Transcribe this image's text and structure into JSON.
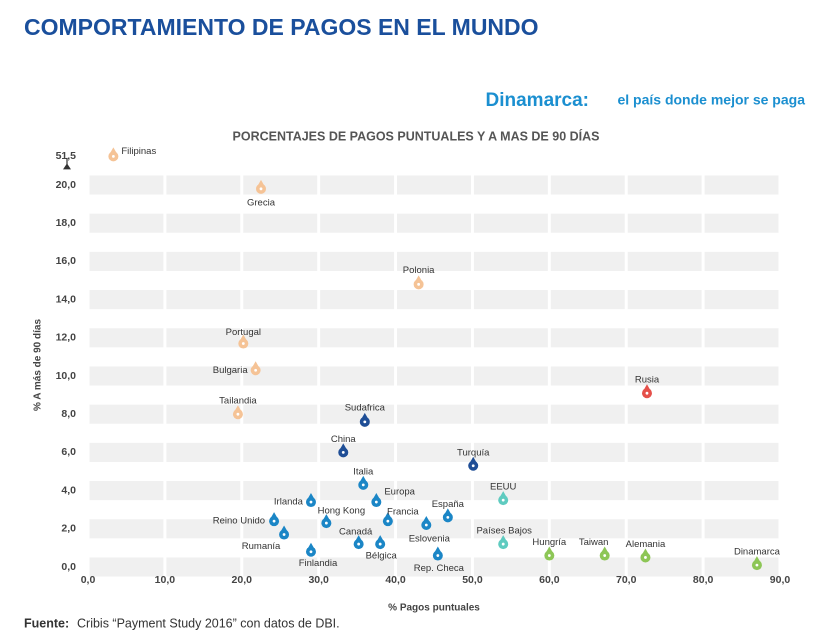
{
  "header": {
    "title": "COMPORTAMIENTO DE PAGOS EN EL MUNDO",
    "highlight": "Dinamarca:",
    "highlight_text": "el país donde mejor se paga"
  },
  "chart_data": {
    "type": "scatter",
    "title": "PORCENTAJES DE PAGOS PUNTUALES Y A MAS DE 90 DÍAS",
    "x_label": "% Pagos puntuales",
    "y_label": "% A más de 90 días",
    "xlim": [
      0,
      90
    ],
    "ylim": [
      0,
      21
    ],
    "y_break": [
      21,
      51
    ],
    "xticks": [
      {
        "value": 0,
        "label": "0,0"
      },
      {
        "value": 10,
        "label": "10,0"
      },
      {
        "value": 20,
        "label": "20,0"
      },
      {
        "value": 30,
        "label": "30,0"
      },
      {
        "value": 40,
        "label": "40,0"
      },
      {
        "value": 50,
        "label": "50,0"
      },
      {
        "value": 60,
        "label": "60,0"
      },
      {
        "value": 70,
        "label": "70,0"
      },
      {
        "value": 80,
        "label": "80,0"
      },
      {
        "value": 90,
        "label": "90,0"
      }
    ],
    "yticks": [
      {
        "value": 0,
        "label": "0,0"
      },
      {
        "value": 2,
        "label": "2,0"
      },
      {
        "value": 4,
        "label": "4,0"
      },
      {
        "value": 6,
        "label": "6,0"
      },
      {
        "value": 8,
        "label": "8,0"
      },
      {
        "value": 10,
        "label": "10,0"
      },
      {
        "value": 12,
        "label": "12,0"
      },
      {
        "value": 14,
        "label": "14,0"
      },
      {
        "value": 16,
        "label": "16,0"
      },
      {
        "value": 18,
        "label": "18,0"
      },
      {
        "value": 20,
        "label": "20,0"
      },
      {
        "value": 51.5,
        "label": "51,5"
      }
    ],
    "grid": true,
    "points": [
      {
        "name": "Filipinas",
        "x": 3.3,
        "y": 51.5,
        "color": "#f5c396"
      },
      {
        "name": "Grecia",
        "x": 22.5,
        "y": 19.8,
        "color": "#f5c396"
      },
      {
        "name": "Polonia",
        "x": 43,
        "y": 14.8,
        "color": "#f5c396"
      },
      {
        "name": "Portugal",
        "x": 20.2,
        "y": 11.7,
        "color": "#f5c396"
      },
      {
        "name": "Bulgaria",
        "x": 21.8,
        "y": 10.3,
        "color": "#f5c396"
      },
      {
        "name": "Tailandia",
        "x": 19.5,
        "y": 8,
        "color": "#f5c396"
      },
      {
        "name": "Rusia",
        "x": 72.7,
        "y": 9.1,
        "color": "#e5504a"
      },
      {
        "name": "Sudafrica",
        "x": 36,
        "y": 7.6,
        "color": "#1f4e96"
      },
      {
        "name": "China",
        "x": 33.2,
        "y": 6,
        "color": "#1f4e96"
      },
      {
        "name": "Turquía",
        "x": 50.1,
        "y": 5.3,
        "color": "#1f4e96"
      },
      {
        "name": "Italia",
        "x": 35.8,
        "y": 4.3,
        "color": "#1b86c6"
      },
      {
        "name": "Irlanda",
        "x": 29,
        "y": 3.4,
        "color": "#1b86c6"
      },
      {
        "name": "Europa",
        "x": 37.5,
        "y": 3.4,
        "color": "#1b86c6"
      },
      {
        "name": "EEUU",
        "x": 54,
        "y": 3.5,
        "color": "#5fcbc0"
      },
      {
        "name": "España",
        "x": 46.8,
        "y": 2.6,
        "color": "#1b86c6"
      },
      {
        "name": "Hong Kong",
        "x": 31,
        "y": 2.3,
        "color": "#1b86c6"
      },
      {
        "name": "Francia",
        "x": 39,
        "y": 2.4,
        "color": "#1b86c6"
      },
      {
        "name": "Eslovenia",
        "x": 44,
        "y": 2.2,
        "color": "#1b86c6"
      },
      {
        "name": "Reino Unido",
        "x": 24.2,
        "y": 2.4,
        "color": "#1b86c6"
      },
      {
        "name": "Rumanía",
        "x": 25.5,
        "y": 1.7,
        "color": "#1b86c6"
      },
      {
        "name": "Canadá",
        "x": 35.2,
        "y": 1.2,
        "color": "#1b86c6"
      },
      {
        "name": "Bélgica",
        "x": 38,
        "y": 1.2,
        "color": "#1b86c6"
      },
      {
        "name": "Países Bajos",
        "x": 54,
        "y": 1.2,
        "color": "#5fcbc0"
      },
      {
        "name": "Hungría",
        "x": 60,
        "y": 0.6,
        "color": "#8dc656"
      },
      {
        "name": "Taiwan",
        "x": 67.2,
        "y": 0.6,
        "color": "#8dc656"
      },
      {
        "name": "Alemania",
        "x": 72.5,
        "y": 0.5,
        "color": "#8dc656"
      },
      {
        "name": "Dinamarca",
        "x": 87,
        "y": 0.1,
        "color": "#8dc656"
      },
      {
        "name": "Finlandia",
        "x": 29,
        "y": 0.8,
        "color": "#1b86c6"
      },
      {
        "name": "Rep. Checa",
        "x": 45.5,
        "y": 0.6,
        "color": "#1b86c6"
      }
    ]
  },
  "footer": {
    "label": "Fuente:",
    "text": "Cribis “Payment Study 2016” con datos de DBI."
  }
}
